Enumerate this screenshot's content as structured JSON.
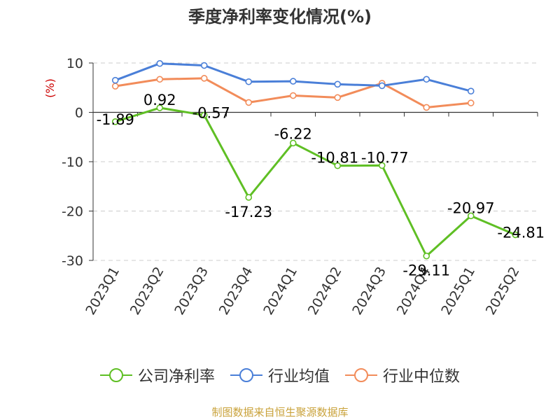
{
  "chart_data": {
    "type": "line",
    "title": "季度净利率变化情况(%)",
    "ylabel": "(%)",
    "categories": [
      "2023Q1",
      "2023Q2",
      "2023Q3",
      "2023Q4",
      "2024Q1",
      "2024Q2",
      "2024Q3",
      "2024Q4",
      "2025Q1",
      "2025Q2"
    ],
    "ylim": [
      -30,
      10
    ],
    "yticks": [
      10,
      0,
      -10,
      -20,
      -30
    ],
    "grid": true,
    "legend_position": "bottom",
    "series": [
      {
        "name": "公司净利率",
        "color": "#5fbf24",
        "values": [
          -1.89,
          0.92,
          -0.57,
          -17.23,
          -6.22,
          -10.81,
          -10.77,
          -29.11,
          -20.97,
          -24.81
        ],
        "labels": [
          "-1.89",
          "0.92",
          "-0.57",
          "-17.23",
          "-6.22",
          "-10.81",
          "-10.77",
          "-29.11",
          "-20.97",
          "-24.81"
        ]
      },
      {
        "name": "行业均值",
        "color": "#4a7fd8",
        "values": [
          6.5,
          9.9,
          9.5,
          6.2,
          6.3,
          5.7,
          5.4,
          6.7,
          4.3,
          null
        ]
      },
      {
        "name": "行业中位数",
        "color": "#f28c5a",
        "values": [
          5.3,
          6.7,
          6.9,
          2.0,
          3.4,
          3.0,
          5.9,
          1.0,
          1.9,
          null
        ]
      }
    ]
  },
  "source": "制图数据来自恒生聚源数据库"
}
